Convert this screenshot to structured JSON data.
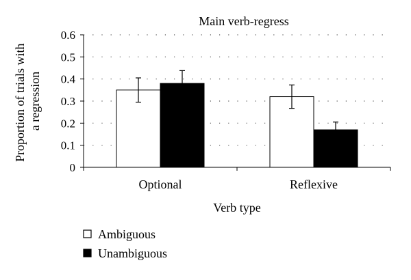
{
  "chart_data": {
    "type": "bar",
    "title": "Main verb-regress",
    "xlabel": "Verb type",
    "ylabel_lines": [
      "Proportion of trials with",
      "a regression"
    ],
    "categories": [
      "Optional",
      "Reflexive"
    ],
    "ylim": [
      0,
      0.6
    ],
    "yticks": [
      0,
      0.1,
      0.2,
      0.3,
      0.4,
      0.5,
      0.6
    ],
    "ytick_labels": [
      "0",
      "0.1",
      "0.2",
      "0.3",
      "0.4",
      "0.5",
      "0.6"
    ],
    "grid": "dotted horizontal",
    "legend_placement": "bottom-left",
    "series": [
      {
        "name": "Ambiguous",
        "fill": "#ffffff",
        "values": [
          0.35,
          0.32
        ],
        "error": [
          0.055,
          0.053
        ]
      },
      {
        "name": "Unambiguous",
        "fill": "#000000",
        "values": [
          0.38,
          0.17
        ],
        "error": [
          0.058,
          0.035
        ]
      }
    ]
  }
}
